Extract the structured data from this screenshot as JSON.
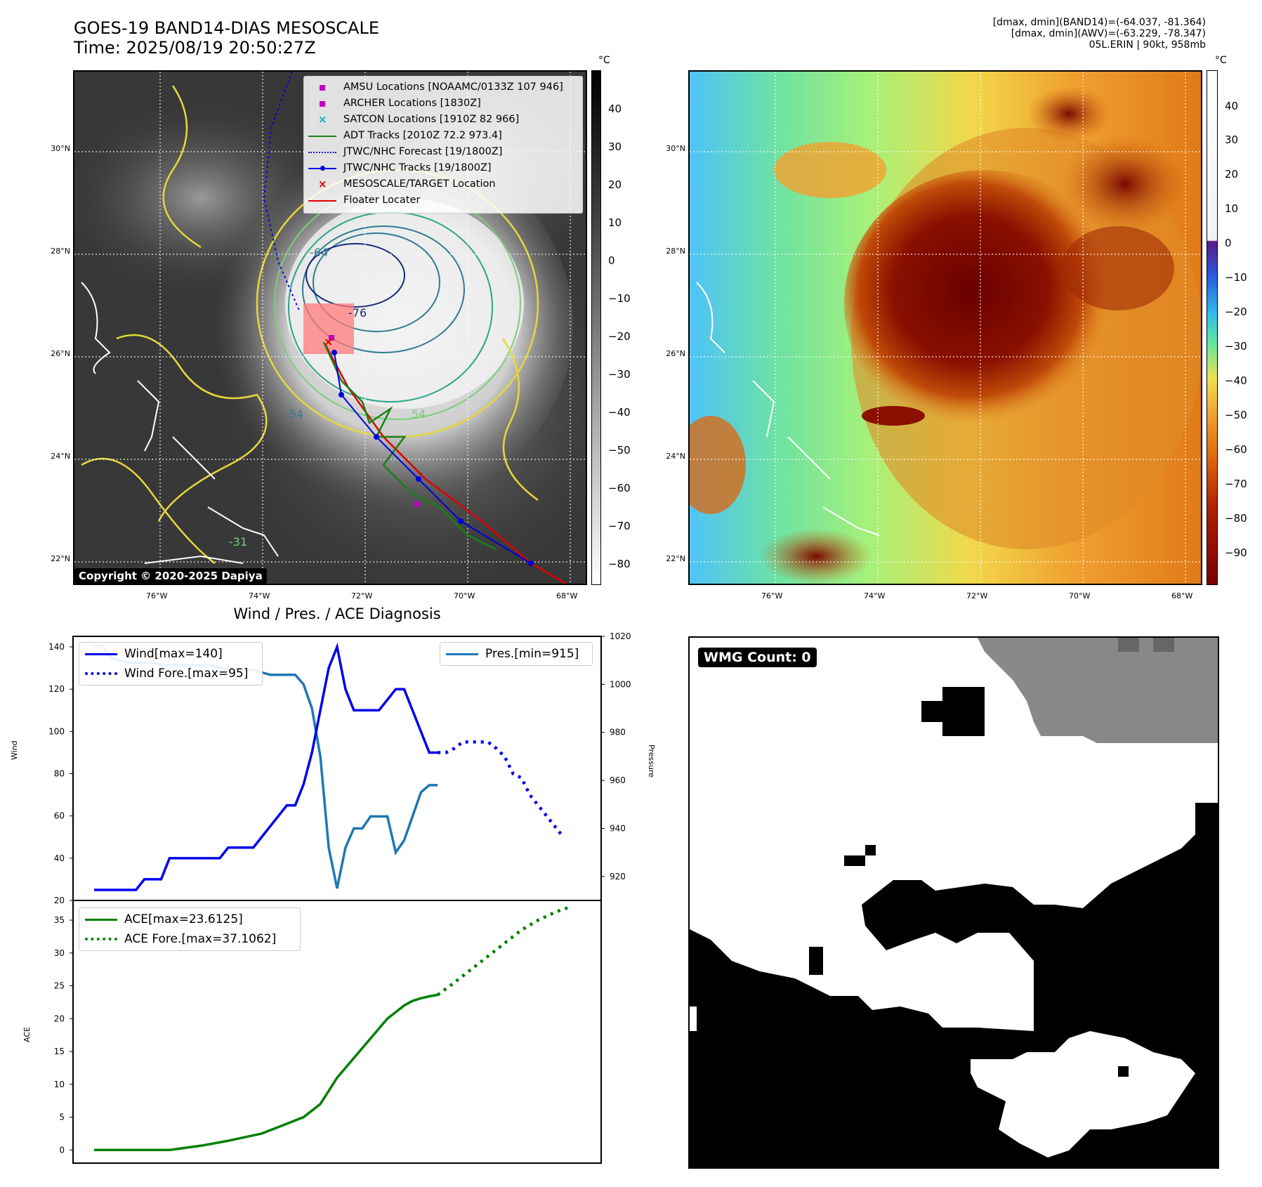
{
  "header": {
    "title_line1": "GOES-19 BAND14-DIAS MESOSCALE",
    "title_line2": "Time: 2025/08/19 20:50:27Z",
    "stats_line1": "[dmax, dmin](BAND14)=(-64.037, -81.364)",
    "stats_line2": "[dmax, dmin](AWV)=(-63.229, -78.347)",
    "stats_line3": "05L.ERIN | 90kt, 958mb"
  },
  "maps": {
    "lat_labels": [
      "30°N",
      "28°N",
      "26°N",
      "24°N",
      "22°N"
    ],
    "lon_labels": [
      "76°W",
      "74°W",
      "72°W",
      "70°W",
      "68°W"
    ],
    "contour_labels": [
      "-64",
      "-76",
      "-54",
      "54",
      "-31"
    ],
    "copyright": "Copyright © 2020-2025 Dapiya",
    "colorbar_gray": {
      "unit": "°C",
      "ticks": [
        "40",
        "30",
        "20",
        "10",
        "0",
        "−10",
        "−20",
        "−30",
        "−40",
        "−50",
        "−60",
        "−70",
        "−80"
      ]
    },
    "colorbar_color": {
      "unit": "°C",
      "ticks": [
        "40",
        "30",
        "20",
        "10",
        "0",
        "−10",
        "−20",
        "−30",
        "−40",
        "−50",
        "−60",
        "−70",
        "−80",
        "−90"
      ]
    },
    "legend": [
      {
        "label": "AMSU Locations [NOAAMC/0133Z 107 946]",
        "kind": "square",
        "color": "#c000c0"
      },
      {
        "label": "ARCHER Locations [1830Z]",
        "kind": "square",
        "color": "#c000c0"
      },
      {
        "label": "SATCON Locations [1910Z 82 966]",
        "kind": "x",
        "color": "#00b5b5"
      },
      {
        "label": "ADT Tracks [2010Z 72.2 973.4]",
        "kind": "line",
        "color": "#1a7f1a"
      },
      {
        "label": "JTWC/NHC Forecast [19/1800Z]",
        "kind": "dotted",
        "color": "#0000dd"
      },
      {
        "label": "JTWC/NHC Tracks [19/1800Z]",
        "kind": "linedot",
        "color": "#0000dd"
      },
      {
        "label": "MESOSCALE/TARGET Location",
        "kind": "x",
        "color": "#e00000"
      },
      {
        "label": "Floater Locater",
        "kind": "line",
        "color": "#e00000"
      }
    ]
  },
  "diagnosis": {
    "title": "Wind / Pres. / ACE Diagnosis",
    "wind_ylabel": "Wind",
    "pres_ylabel": "Pressure",
    "ace_ylabel": "ACE",
    "legend_wind": "Wind[max=140]",
    "legend_wind_fore": "Wind Fore.[max=95]",
    "legend_pres": "Pres.[min=915]",
    "legend_ace": "ACE[max=23.6125]",
    "legend_ace_fore": "ACE Fore.[max=37.1062]",
    "wmg_label": "WMG Count: 0"
  },
  "chart_data": [
    {
      "type": "line",
      "title": "Wind / Pres. / ACE Diagnosis",
      "xlabel": "",
      "ylabel": "Wind",
      "ylim": [
        20,
        145
      ],
      "y_ticks": [
        20,
        40,
        60,
        80,
        100,
        120,
        140
      ],
      "xlim": [
        0,
        58
      ],
      "series": [
        {
          "name": "Wind[max=140]",
          "color": "#0000ee",
          "style": "solid",
          "x": [
            0,
            1,
            2,
            3,
            4,
            5,
            6,
            7,
            8,
            9,
            10,
            11,
            12,
            13,
            14,
            15,
            16,
            17,
            18,
            19,
            20,
            21,
            22,
            23,
            24,
            25,
            26,
            27,
            28,
            29,
            30,
            31,
            32,
            33,
            34,
            35,
            36,
            37,
            38,
            39,
            40,
            41
          ],
          "y": [
            25,
            25,
            25,
            25,
            25,
            25,
            30,
            30,
            30,
            40,
            40,
            40,
            40,
            40,
            40,
            40,
            45,
            45,
            45,
            45,
            50,
            55,
            60,
            65,
            65,
            75,
            90,
            110,
            130,
            140,
            120,
            110,
            110,
            110,
            110,
            115,
            120,
            120,
            110,
            100,
            90,
            90
          ]
        },
        {
          "name": "Wind Fore.[max=95]",
          "color": "#0000ee",
          "style": "dotted",
          "x": [
            41,
            42,
            43,
            44,
            45,
            46,
            47,
            48,
            49,
            50,
            51,
            52,
            53,
            54,
            55,
            56
          ],
          "y": [
            90,
            90,
            92,
            95,
            95,
            95,
            95,
            92,
            88,
            80,
            78,
            70,
            65,
            60,
            55,
            50
          ]
        },
        {
          "name": "Pres.[min=915]",
          "color": "#1f77b4",
          "style": "solid",
          "axis": "right",
          "ylim": [
            910,
            1020
          ],
          "y_ticks": [
            920,
            940,
            960,
            980,
            1000,
            1020
          ],
          "x": [
            0,
            1,
            2,
            3,
            4,
            5,
            6,
            7,
            8,
            9,
            10,
            11,
            12,
            13,
            14,
            15,
            16,
            17,
            18,
            19,
            20,
            21,
            22,
            23,
            24,
            25,
            26,
            27,
            28,
            29,
            30,
            31,
            32,
            33,
            34,
            35,
            36,
            37,
            38,
            39,
            40,
            41
          ],
          "y": [
            1016,
            1016,
            1011,
            1010,
            1009,
            1009,
            1009,
            1009,
            1008,
            1008,
            1008,
            1008,
            1008,
            1008,
            1008,
            1007,
            1006,
            1006,
            1006,
            1006,
            1005,
            1004,
            1004,
            1004,
            1004,
            1000,
            990,
            970,
            932,
            915,
            932,
            940,
            940,
            945,
            945,
            945,
            930,
            935,
            945,
            955,
            958,
            958
          ]
        },
        {
          "name": "ACE[max=23.6125]",
          "color": "#008000",
          "style": "solid",
          "panel": "ace",
          "ylim": [
            -2,
            38
          ],
          "y_ticks": [
            0,
            5,
            10,
            15,
            20,
            25,
            30,
            35
          ],
          "x": [
            0,
            5,
            9,
            13,
            16,
            20,
            22,
            25,
            27,
            28,
            29,
            30,
            31,
            32,
            33,
            34,
            35,
            36,
            37,
            38,
            39,
            40,
            41
          ],
          "y": [
            0,
            0,
            0,
            0.7,
            1.4,
            2.5,
            3.5,
            5,
            7,
            9,
            11,
            12.5,
            14,
            15.5,
            17,
            18.5,
            20,
            21,
            22,
            22.7,
            23.1,
            23.4,
            23.6125
          ]
        },
        {
          "name": "ACE Fore.[max=37.1062]",
          "color": "#008000",
          "style": "dotted",
          "panel": "ace",
          "x": [
            41,
            43,
            45,
            47,
            49,
            51,
            53,
            55,
            57
          ],
          "y": [
            23.6125,
            25.5,
            27.5,
            29.5,
            31.5,
            33.5,
            35,
            36.2,
            37.1062
          ]
        }
      ]
    }
  ]
}
